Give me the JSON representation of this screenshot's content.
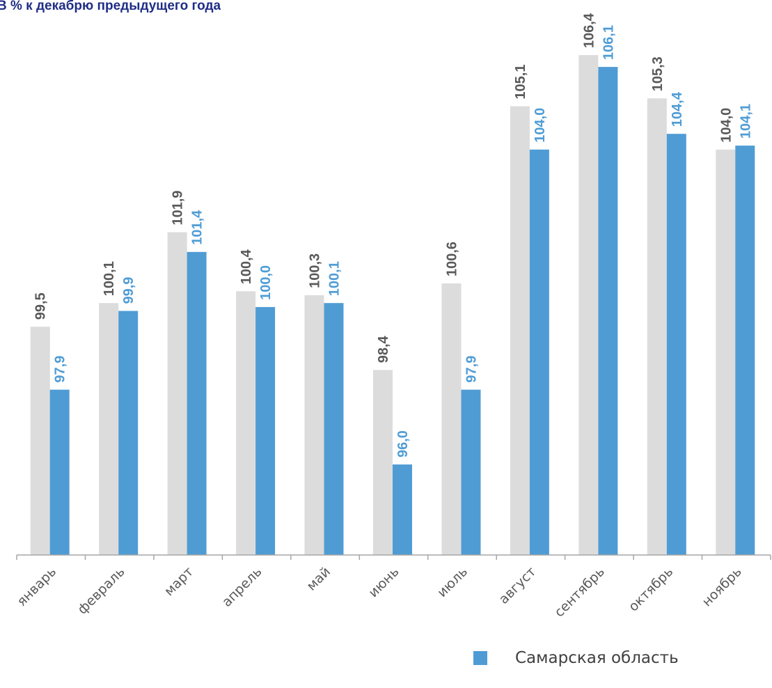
{
  "chart_data": {
    "type": "bar",
    "title": "В % к декабрю предыдущего года",
    "categories": [
      "январь",
      "февраль",
      "март",
      "апрель",
      "май",
      "июнь",
      "июль",
      "август",
      "сентябрь",
      "октябрь",
      "ноябрь"
    ],
    "series": [
      {
        "values": [
          99.5,
          100.1,
          101.9,
          100.4,
          100.3,
          98.4,
          100.6,
          105.1,
          106.4,
          105.3,
          104.0
        ],
        "labels": [
          "99,5",
          "100,1",
          "101,9",
          "100,4",
          "100,3",
          "98,4",
          "100,6",
          "105,1",
          "106,4",
          "105,3",
          "104,0"
        ],
        "color": "#dcdcdc",
        "label_color": "#595959"
      },
      {
        "name": "Самарская область",
        "values": [
          97.9,
          99.9,
          101.4,
          100.0,
          100.1,
          96.0,
          97.9,
          104.0,
          106.1,
          104.4,
          104.1
        ],
        "labels": [
          "97,9",
          "99,9",
          "101,4",
          "100,0",
          "100,1",
          "96,0",
          "97,9",
          "104,0",
          "106,1",
          "104,4",
          "104,1"
        ],
        "color": "#4f9cd5",
        "label_color": "#4f9cd5"
      }
    ],
    "ylim": [
      93.7,
      107.8
    ],
    "grid": false,
    "legend_position": "bottom-right",
    "axis_color": "#a6a6a6"
  }
}
